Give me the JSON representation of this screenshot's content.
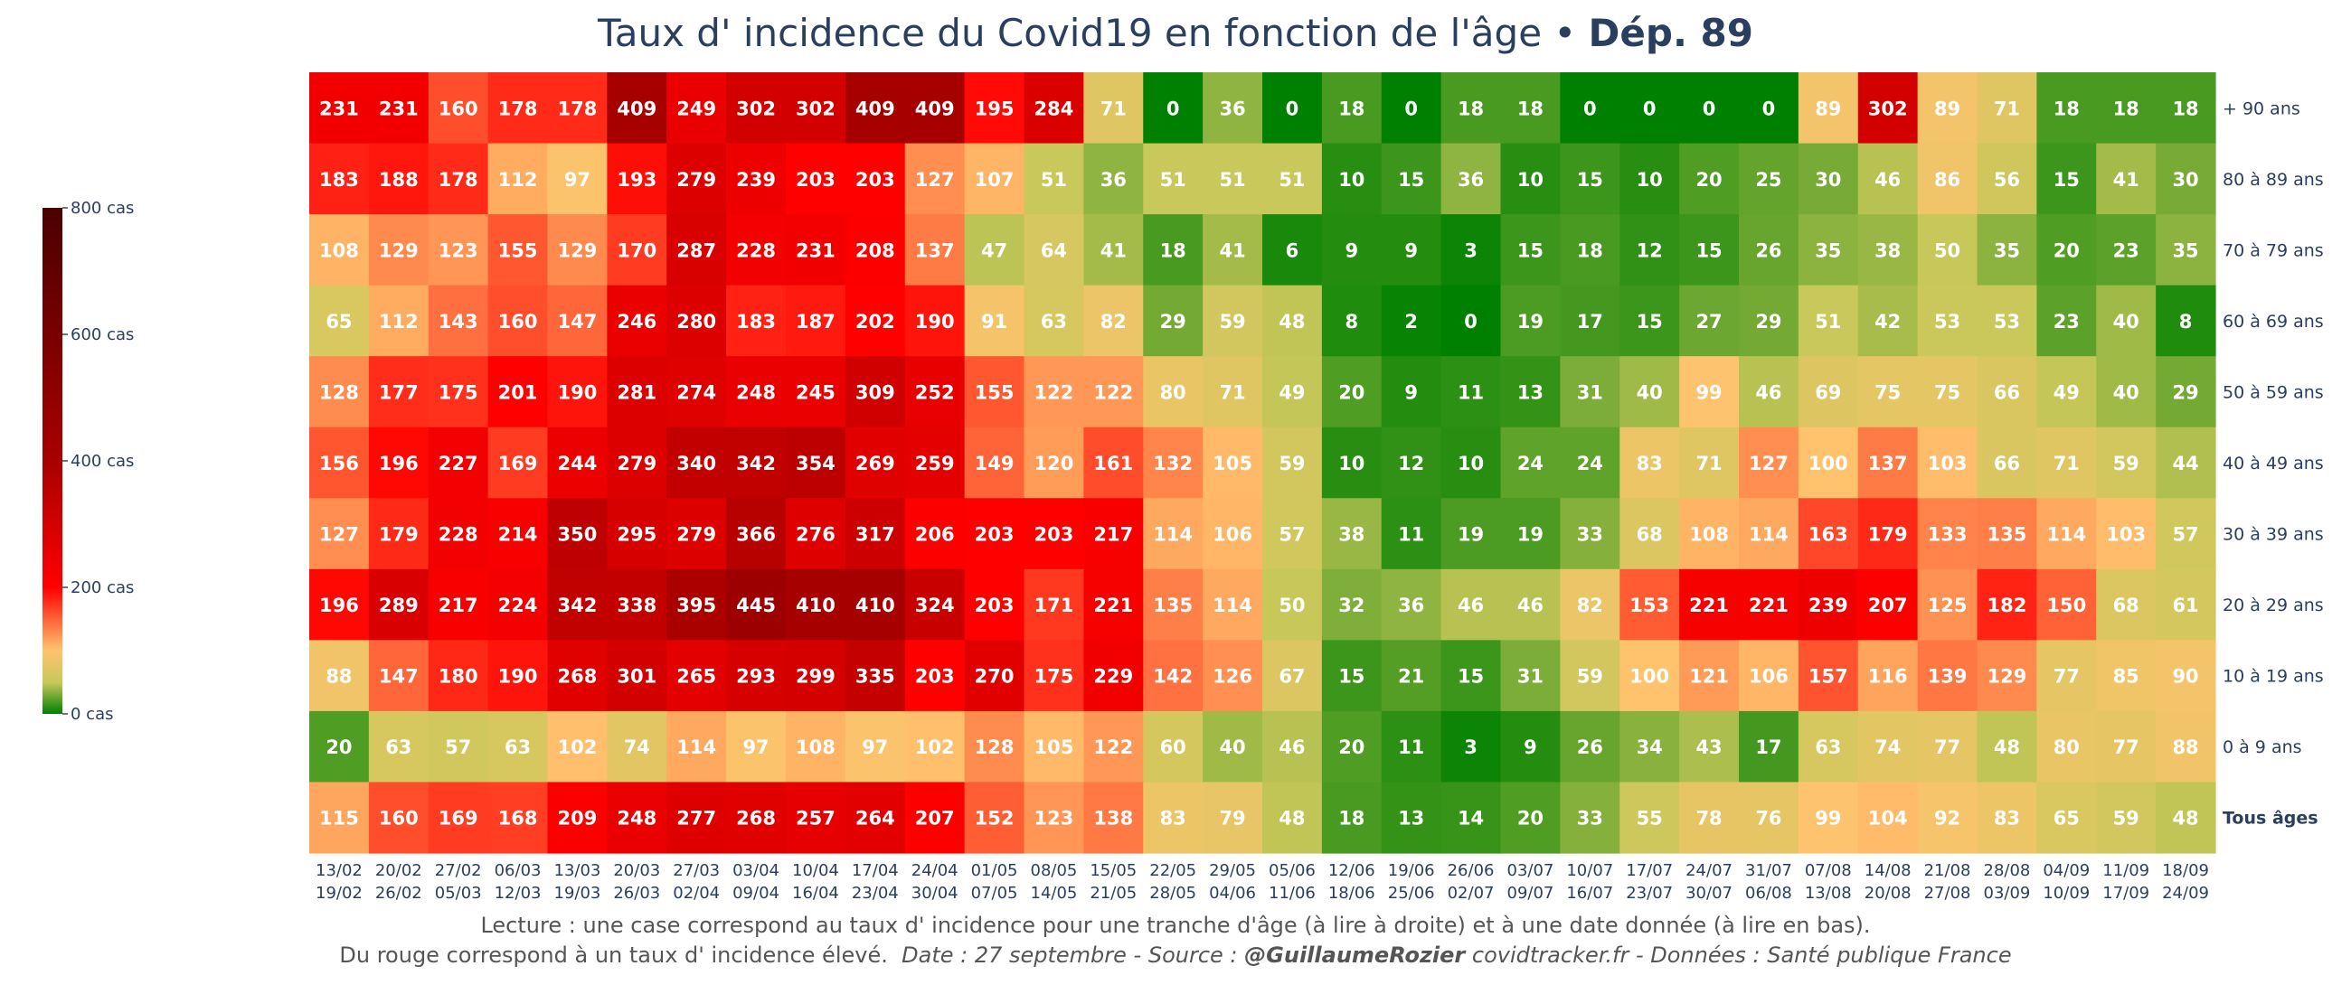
{
  "chart_data": {
    "type": "heatmap",
    "title_main": "Taux d' incidence du Covid19 en fonction de l'âge • ",
    "title_dept": "Dép. 89",
    "rows": [
      "+ 90 ans",
      "80 à 89 ans",
      "70 à 79 ans",
      "60 à 69 ans",
      "50 à 59 ans",
      "40 à 49 ans",
      "30 à 39 ans",
      "20 à 29 ans",
      "10 à 19 ans",
      "0 à 9 ans",
      "Tous âges"
    ],
    "columns": [
      {
        "start": "13/02",
        "end": "19/02"
      },
      {
        "start": "20/02",
        "end": "26/02"
      },
      {
        "start": "27/02",
        "end": "05/03"
      },
      {
        "start": "06/03",
        "end": "12/03"
      },
      {
        "start": "13/03",
        "end": "19/03"
      },
      {
        "start": "20/03",
        "end": "26/03"
      },
      {
        "start": "27/03",
        "end": "02/04"
      },
      {
        "start": "03/04",
        "end": "09/04"
      },
      {
        "start": "10/04",
        "end": "16/04"
      },
      {
        "start": "17/04",
        "end": "23/04"
      },
      {
        "start": "24/04",
        "end": "30/04"
      },
      {
        "start": "01/05",
        "end": "07/05"
      },
      {
        "start": "08/05",
        "end": "14/05"
      },
      {
        "start": "15/05",
        "end": "21/05"
      },
      {
        "start": "22/05",
        "end": "28/05"
      },
      {
        "start": "29/05",
        "end": "04/06"
      },
      {
        "start": "05/06",
        "end": "11/06"
      },
      {
        "start": "12/06",
        "end": "18/06"
      },
      {
        "start": "19/06",
        "end": "25/06"
      },
      {
        "start": "26/06",
        "end": "02/07"
      },
      {
        "start": "03/07",
        "end": "09/07"
      },
      {
        "start": "10/07",
        "end": "16/07"
      },
      {
        "start": "17/07",
        "end": "23/07"
      },
      {
        "start": "24/07",
        "end": "30/07"
      },
      {
        "start": "31/07",
        "end": "06/08"
      },
      {
        "start": "07/08",
        "end": "13/08"
      },
      {
        "start": "14/08",
        "end": "20/08"
      },
      {
        "start": "21/08",
        "end": "27/08"
      },
      {
        "start": "28/08",
        "end": "03/09"
      },
      {
        "start": "04/09",
        "end": "10/09"
      },
      {
        "start": "11/09",
        "end": "17/09"
      },
      {
        "start": "18/09",
        "end": "24/09"
      }
    ],
    "values": [
      [
        231,
        231,
        160,
        178,
        178,
        409,
        249,
        302,
        302,
        409,
        409,
        195,
        284,
        71,
        0,
        36,
        0,
        18,
        0,
        18,
        18,
        0,
        0,
        0,
        0,
        89,
        302,
        89,
        71,
        18,
        18,
        18
      ],
      [
        183,
        188,
        178,
        112,
        97,
        193,
        279,
        239,
        203,
        203,
        127,
        107,
        51,
        36,
        51,
        51,
        51,
        10,
        15,
        36,
        10,
        15,
        10,
        20,
        25,
        30,
        46,
        86,
        56,
        15,
        41,
        30
      ],
      [
        108,
        129,
        123,
        155,
        129,
        170,
        287,
        228,
        231,
        208,
        137,
        47,
        64,
        41,
        18,
        41,
        6,
        9,
        9,
        3,
        15,
        18,
        12,
        15,
        26,
        35,
        38,
        50,
        35,
        20,
        23,
        35
      ],
      [
        65,
        112,
        143,
        160,
        147,
        246,
        280,
        183,
        187,
        202,
        190,
        91,
        63,
        82,
        29,
        59,
        48,
        8,
        2,
        0,
        19,
        17,
        15,
        27,
        29,
        51,
        42,
        53,
        53,
        23,
        40,
        8
      ],
      [
        128,
        177,
        175,
        201,
        190,
        281,
        274,
        248,
        245,
        309,
        252,
        155,
        122,
        122,
        80,
        71,
        49,
        20,
        9,
        11,
        13,
        31,
        40,
        99,
        46,
        69,
        75,
        75,
        66,
        49,
        40,
        29
      ],
      [
        156,
        196,
        227,
        169,
        244,
        279,
        340,
        342,
        354,
        269,
        259,
        149,
        120,
        161,
        132,
        105,
        59,
        10,
        12,
        10,
        24,
        24,
        83,
        71,
        127,
        100,
        137,
        103,
        66,
        71,
        59,
        44
      ],
      [
        127,
        179,
        228,
        214,
        350,
        295,
        279,
        366,
        276,
        317,
        206,
        203,
        203,
        217,
        114,
        106,
        57,
        38,
        11,
        19,
        19,
        33,
        68,
        108,
        114,
        163,
        179,
        133,
        135,
        114,
        103,
        57
      ],
      [
        196,
        289,
        217,
        224,
        342,
        338,
        395,
        445,
        410,
        410,
        324,
        203,
        171,
        221,
        135,
        114,
        50,
        32,
        36,
        46,
        46,
        82,
        153,
        221,
        221,
        239,
        207,
        125,
        182,
        150,
        68,
        61
      ],
      [
        88,
        147,
        180,
        190,
        268,
        301,
        265,
        293,
        299,
        335,
        203,
        270,
        175,
        229,
        142,
        126,
        67,
        15,
        21,
        15,
        31,
        59,
        100,
        121,
        106,
        157,
        116,
        139,
        129,
        77,
        85,
        90
      ],
      [
        20,
        63,
        57,
        63,
        102,
        74,
        114,
        97,
        108,
        97,
        102,
        128,
        105,
        122,
        60,
        40,
        46,
        20,
        11,
        3,
        9,
        26,
        34,
        43,
        17,
        63,
        74,
        77,
        48,
        80,
        77,
        88
      ],
      [
        115,
        160,
        169,
        168,
        209,
        248,
        277,
        268,
        257,
        264,
        207,
        152,
        123,
        138,
        83,
        79,
        48,
        18,
        13,
        14,
        20,
        33,
        55,
        78,
        76,
        99,
        104,
        92,
        83,
        65,
        59,
        48
      ]
    ],
    "colorscale": {
      "min": 0,
      "max": 800,
      "stops": [
        {
          "value": 0,
          "color": "#008000"
        },
        {
          "value": 50,
          "color": "#c8c85a"
        },
        {
          "value": 100,
          "color": "#ffc36e"
        },
        {
          "value": 200,
          "color": "#ff0000"
        },
        {
          "value": 400,
          "color": "#a80000"
        },
        {
          "value": 800,
          "color": "#4a0000"
        }
      ],
      "ticks": [
        {
          "value": 0,
          "label": "0 cas"
        },
        {
          "value": 200,
          "label": "200 cas"
        },
        {
          "value": 400,
          "label": "400 cas"
        },
        {
          "value": 600,
          "label": "600 cas"
        },
        {
          "value": 800,
          "label": "800 cas"
        }
      ]
    }
  },
  "caption": {
    "line1": "Lecture : une case correspond au taux d' incidence pour une tranche d'âge (à lire à droite) et à une date donnée (à lire en bas).",
    "line2_text": "Du rouge correspond à un taux d' incidence élevé.",
    "line2_date_source": "Date : 27 septembre - Source : ",
    "author": "@GuillaumeRozier",
    "line2_rest": " covidtracker.fr - Données : Santé publique France"
  }
}
